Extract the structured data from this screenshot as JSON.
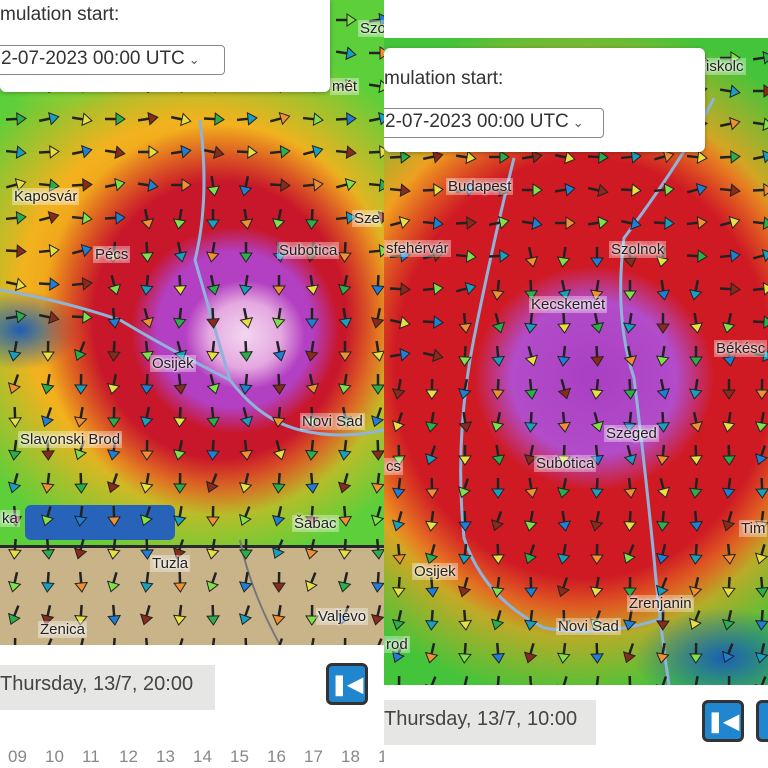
{
  "left": {
    "simulation_label": "mulation start:",
    "simulation_value": "2-07-2023 00:00 UTC",
    "time_label": "Thursday, 13/7, 20:00",
    "first_button_icon": "skip-to-start-icon",
    "hours": [
      "09",
      "10",
      "11",
      "12",
      "13",
      "14",
      "15",
      "16",
      "17",
      "18",
      "1"
    ],
    "cities": [
      {
        "name": "Szo"
      },
      {
        "name": "mét"
      },
      {
        "name": "Kaposvár"
      },
      {
        "name": "Pécs"
      },
      {
        "name": "Subotica"
      },
      {
        "name": "Sze"
      },
      {
        "name": "Osijek"
      },
      {
        "name": "Novi Sad"
      },
      {
        "name": "Slavonski Brod"
      },
      {
        "name": "Šabac"
      },
      {
        "name": "ka"
      },
      {
        "name": "Tuzla"
      },
      {
        "name": "Zenica"
      },
      {
        "name": "Valjevo"
      }
    ]
  },
  "right": {
    "simulation_label": "mulation start:",
    "simulation_value": "2-07-2023 00:00 UTC",
    "time_label": "Thursday, 13/7, 10:00",
    "first_button_icon": "skip-to-start-icon",
    "cities": [
      {
        "name": "iskolc"
      },
      {
        "name": "Budapest"
      },
      {
        "name": "sfehérvár"
      },
      {
        "name": "Szolnok"
      },
      {
        "name": "Kecskemét"
      },
      {
        "name": "Békésc"
      },
      {
        "name": "Szeged"
      },
      {
        "name": "Subotica"
      },
      {
        "name": "cs"
      },
      {
        "name": "Tim"
      },
      {
        "name": "Osijek"
      },
      {
        "name": "Zrenjanin"
      },
      {
        "name": "Novi Sad"
      },
      {
        "name": "rod"
      }
    ]
  },
  "colors": {
    "button": "#2186d0",
    "river": "#8fb3d9",
    "no_data": "#c9b48a"
  }
}
